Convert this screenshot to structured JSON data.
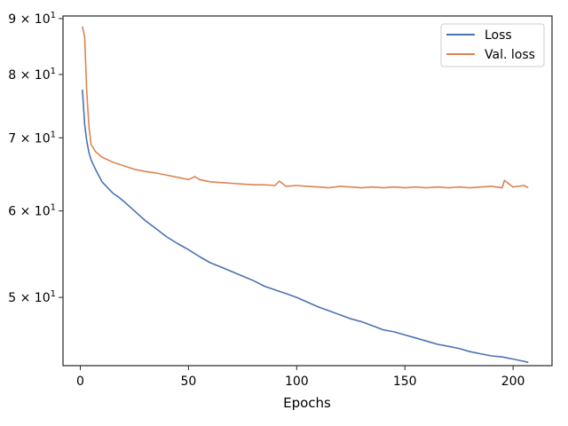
{
  "chart_data": {
    "type": "line",
    "xlabel": "Epochs",
    "ylabel": "",
    "y_scale": "log",
    "grid": false,
    "legend": "top-right",
    "xlim": [
      -8,
      218
    ],
    "ylim": [
      43.3,
      90.5
    ],
    "x_ticks": [
      0,
      50,
      100,
      150,
      200
    ],
    "y_ticks": [
      {
        "value": 50,
        "label_mantissa": "5",
        "label_exp": "1"
      },
      {
        "value": 60,
        "label_mantissa": "6",
        "label_exp": "1"
      },
      {
        "value": 70,
        "label_mantissa": "7",
        "label_exp": "1"
      },
      {
        "value": 80,
        "label_mantissa": "8",
        "label_exp": "1"
      },
      {
        "value": 90,
        "label_mantissa": "9",
        "label_exp": "1"
      }
    ],
    "series": [
      {
        "name": "Loss",
        "color": "#4c72b0",
        "x": [
          1,
          2,
          3,
          4,
          5,
          7,
          10,
          12,
          15,
          18,
          21,
          25,
          30,
          35,
          40,
          45,
          50,
          55,
          60,
          65,
          70,
          75,
          80,
          85,
          90,
          95,
          100,
          105,
          110,
          115,
          120,
          125,
          130,
          135,
          140,
          145,
          150,
          155,
          160,
          165,
          170,
          175,
          180,
          185,
          190,
          195,
          200,
          205,
          207
        ],
        "values": [
          77.5,
          72.0,
          69.5,
          67.8,
          66.8,
          65.5,
          63.8,
          63.2,
          62.3,
          61.7,
          61.0,
          60.0,
          58.8,
          57.8,
          56.8,
          56.0,
          55.3,
          54.5,
          53.8,
          53.3,
          52.8,
          52.3,
          51.8,
          51.2,
          50.8,
          50.4,
          50.0,
          49.5,
          49.0,
          48.6,
          48.2,
          47.8,
          47.5,
          47.1,
          46.7,
          46.5,
          46.2,
          45.9,
          45.6,
          45.3,
          45.1,
          44.9,
          44.6,
          44.4,
          44.2,
          44.1,
          43.9,
          43.7,
          43.6
        ]
      },
      {
        "name": "Val. loss",
        "color": "#dd8452",
        "x": [
          1,
          2,
          3,
          4,
          5,
          7,
          10,
          15,
          20,
          25,
          30,
          35,
          40,
          45,
          50,
          53,
          55,
          60,
          65,
          70,
          75,
          80,
          85,
          90,
          92,
          95,
          100,
          105,
          110,
          115,
          120,
          125,
          130,
          135,
          140,
          145,
          150,
          155,
          160,
          165,
          170,
          175,
          180,
          185,
          190,
          195,
          196,
          200,
          205,
          207
        ],
        "values": [
          88.5,
          86.5,
          77.0,
          71.5,
          69.0,
          68.0,
          67.2,
          66.5,
          66.0,
          65.5,
          65.2,
          65.0,
          64.7,
          64.4,
          64.1,
          64.5,
          64.1,
          63.8,
          63.7,
          63.6,
          63.5,
          63.4,
          63.4,
          63.3,
          63.9,
          63.2,
          63.3,
          63.2,
          63.1,
          63.0,
          63.2,
          63.1,
          63.0,
          63.1,
          63.0,
          63.1,
          63.0,
          63.1,
          63.0,
          63.1,
          63.0,
          63.1,
          63.0,
          63.1,
          63.2,
          63.0,
          64.0,
          63.1,
          63.3,
          63.0
        ]
      }
    ]
  }
}
